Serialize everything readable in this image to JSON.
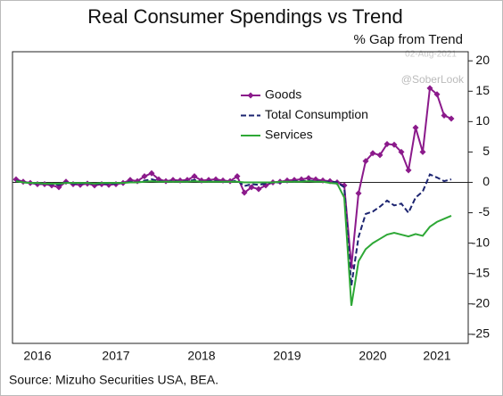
{
  "chart_data": {
    "type": "line",
    "title": "Real Consumer Spendings vs Trend",
    "subtitle": "% Gap from Trend",
    "source": "Source:  Mizuho Securities USA, BEA.",
    "annotations": [
      "02-Aug-2021",
      "@SoberLook"
    ],
    "categories": [
      null,
      null,
      null,
      "2016",
      null,
      null,
      null,
      null,
      null,
      null,
      null,
      null,
      null,
      null,
      "2017",
      null,
      null,
      null,
      null,
      null,
      null,
      null,
      null,
      null,
      null,
      null,
      "2018",
      null,
      null,
      null,
      null,
      null,
      null,
      null,
      null,
      null,
      null,
      null,
      "2019",
      null,
      null,
      null,
      null,
      null,
      null,
      null,
      null,
      null,
      null,
      null,
      "2020",
      null,
      null,
      null,
      null,
      null,
      null,
      null,
      null,
      "2021",
      null,
      null
    ],
    "series": [
      {
        "name": "Goods",
        "color": "#8b1a8b",
        "marker": "diamond",
        "dash": false,
        "values": [
          0.5,
          0.1,
          -0.1,
          -0.3,
          -0.3,
          -0.5,
          -0.8,
          0.1,
          -0.3,
          -0.4,
          -0.2,
          -0.5,
          -0.3,
          -0.4,
          -0.3,
          -0.1,
          0.4,
          0.2,
          1.0,
          1.5,
          0.5,
          0.2,
          0.4,
          0.3,
          0.4,
          1.0,
          0.3,
          0.4,
          0.5,
          0.3,
          0.2,
          1.0,
          -1.7,
          -0.8,
          -1.1,
          -0.5,
          0.0,
          0.1,
          0.3,
          0.4,
          0.5,
          0.7,
          0.5,
          0.3,
          0.2,
          0.0,
          -0.5,
          -13.8,
          -1.8,
          3.5,
          4.8,
          4.5,
          6.3,
          6.2,
          5.0,
          2.0,
          9.0,
          5.0,
          15.5,
          14.5,
          11.0,
          10.5
        ]
      },
      {
        "name": "Total Consumption",
        "color": "#1c2470",
        "marker": null,
        "dash": true,
        "values": [
          0.3,
          0.0,
          -0.1,
          -0.2,
          -0.2,
          -0.3,
          -0.4,
          0.0,
          -0.2,
          -0.2,
          -0.1,
          -0.3,
          -0.2,
          -0.2,
          -0.2,
          -0.1,
          0.1,
          0.0,
          0.3,
          0.5,
          0.2,
          0.1,
          0.2,
          0.1,
          0.2,
          0.4,
          0.1,
          0.2,
          0.2,
          0.1,
          0.1,
          0.3,
          -0.6,
          -0.3,
          -0.4,
          -0.2,
          0.0,
          0.0,
          0.1,
          0.2,
          0.2,
          0.3,
          0.2,
          0.1,
          0.1,
          0.0,
          -0.8,
          -17.0,
          -9.0,
          -5.2,
          -4.8,
          -4.0,
          -3.0,
          -3.8,
          -3.5,
          -5.0,
          -2.5,
          -1.5,
          1.3,
          0.8,
          0.2,
          0.5
        ]
      },
      {
        "name": "Services",
        "color": "#2ea836",
        "marker": null,
        "dash": false,
        "values": [
          0.2,
          0.0,
          -0.1,
          -0.1,
          -0.2,
          -0.2,
          -0.2,
          -0.1,
          -0.1,
          -0.1,
          -0.1,
          -0.2,
          -0.1,
          -0.1,
          -0.1,
          -0.1,
          0.0,
          0.0,
          0.1,
          0.2,
          0.1,
          0.1,
          0.1,
          0.1,
          0.1,
          0.2,
          0.1,
          0.1,
          0.1,
          0.1,
          0.1,
          0.1,
          0.0,
          0.0,
          0.0,
          0.0,
          0.0,
          0.1,
          0.1,
          0.1,
          0.1,
          0.2,
          0.1,
          0.1,
          -0.1,
          -0.2,
          -2.5,
          -20.3,
          -13.0,
          -11.0,
          -10.0,
          -9.3,
          -8.6,
          -8.3,
          -8.6,
          -8.9,
          -8.5,
          -8.8,
          -7.3,
          -6.5,
          -6.0,
          -5.5
        ]
      }
    ],
    "ylim": [
      -26.5,
      21.5
    ],
    "yticks": [
      20,
      15,
      10,
      5,
      0,
      -5,
      -10,
      -15,
      -20,
      -25
    ],
    "y_axis_side": "right",
    "legend": "upper right"
  }
}
